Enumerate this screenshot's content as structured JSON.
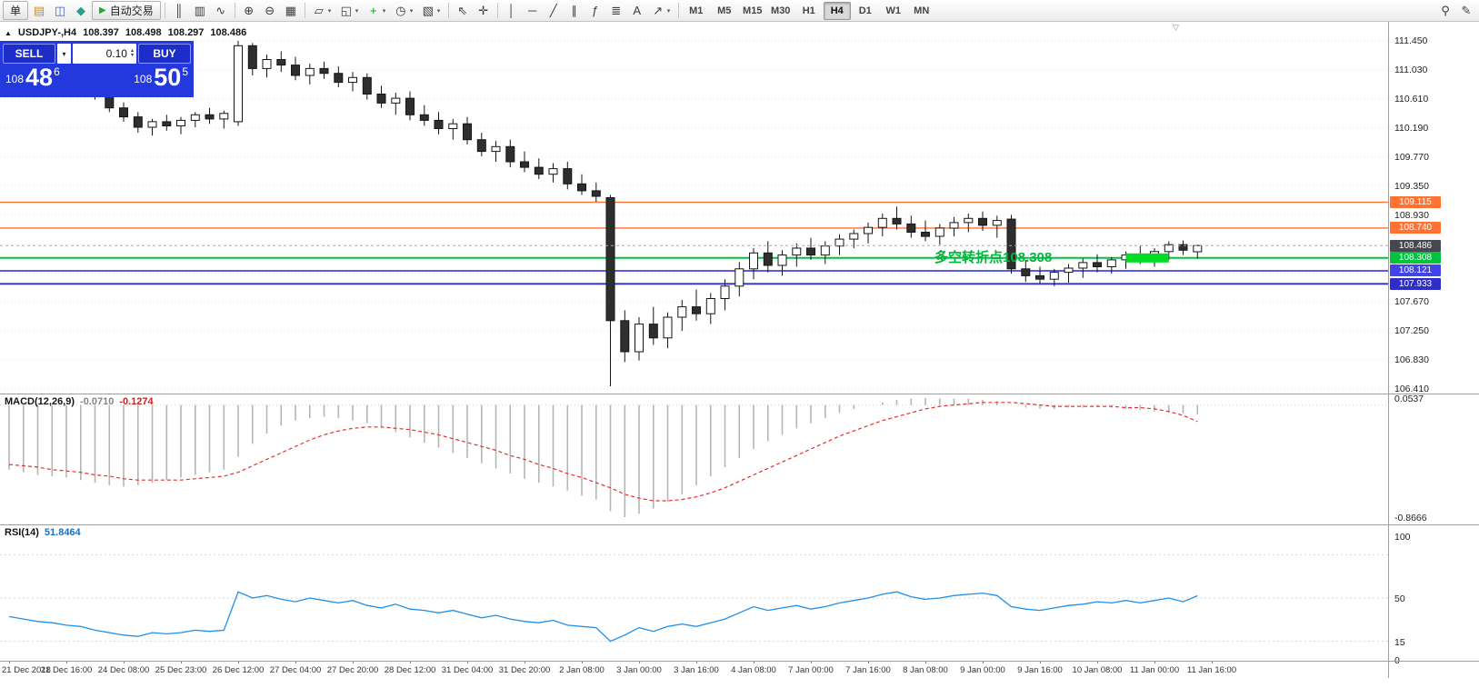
{
  "toolbar": {
    "items": [
      {
        "name": "new-order-button",
        "kind": "button",
        "label": "单"
      },
      {
        "name": "chart-window-icon",
        "kind": "icon",
        "glyph": "▤",
        "color": "#c79200"
      },
      {
        "name": "profiles-icon",
        "kind": "icon",
        "glyph": "◫",
        "color": "#3f66cc"
      },
      {
        "name": "navigator-icon",
        "kind": "icon",
        "glyph": "◆",
        "color": "#2a9d8f"
      },
      {
        "name": "auto-trading-button",
        "kind": "button",
        "label": "自动交易",
        "glyph": "▶",
        "glyph_color": "#1fae1f"
      },
      {
        "kind": "sep"
      },
      {
        "name": "bar-chart-icon",
        "kind": "icon",
        "glyph": "║"
      },
      {
        "name": "candlestick-chart-icon",
        "kind": "icon",
        "glyph": "▥"
      },
      {
        "name": "line-chart-icon",
        "kind": "icon",
        "glyph": "∿"
      },
      {
        "kind": "sep"
      },
      {
        "name": "zoom-in-icon",
        "kind": "icon",
        "glyph": "⊕"
      },
      {
        "name": "zoom-out-icon",
        "kind": "icon",
        "glyph": "⊖"
      },
      {
        "name": "tile-windows-icon",
        "kind": "icon",
        "glyph": "▦"
      },
      {
        "kind": "sep"
      },
      {
        "name": "new-chart-icon",
        "kind": "icon",
        "glyph": "▱",
        "caret": true
      },
      {
        "name": "profiles-menu-icon",
        "kind": "icon",
        "glyph": "◱",
        "caret": true
      },
      {
        "name": "indicators-icon",
        "kind": "icon",
        "glyph": "+",
        "color": "#0f9d0f",
        "caret": true
      },
      {
        "name": "periods-icon",
        "kind": "icon",
        "glyph": "◷",
        "caret": true
      },
      {
        "name": "templates-icon",
        "kind": "icon",
        "glyph": "▧",
        "caret": true
      },
      {
        "kind": "sep"
      },
      {
        "name": "cursor-icon",
        "kind": "icon",
        "glyph": "⇖"
      },
      {
        "name": "crosshair-icon",
        "kind": "icon",
        "glyph": "✛"
      },
      {
        "kind": "sep"
      },
      {
        "name": "vertical-line-icon",
        "kind": "icon",
        "glyph": "│"
      },
      {
        "name": "horizontal-line-icon",
        "kind": "icon",
        "glyph": "─"
      },
      {
        "name": "trendline-icon",
        "kind": "icon",
        "glyph": "╱"
      },
      {
        "name": "channel-icon",
        "kind": "icon",
        "glyph": "∥"
      },
      {
        "name": "fibonacci-icon",
        "kind": "icon",
        "glyph": "ƒ"
      },
      {
        "name": "shapes-icon",
        "kind": "icon",
        "glyph": "≣"
      },
      {
        "name": "text-icon",
        "kind": "icon",
        "glyph": "A"
      },
      {
        "name": "arrows-icon",
        "kind": "icon",
        "glyph": "↗",
        "caret": true
      },
      {
        "kind": "sep"
      }
    ],
    "timeframes": [
      "M1",
      "M5",
      "M15",
      "M30",
      "H1",
      "H4",
      "D1",
      "W1",
      "MN"
    ],
    "active_timeframe": "H4",
    "right_items": [
      {
        "name": "search-icon",
        "kind": "icon",
        "glyph": "⚲"
      },
      {
        "name": "edit-icon",
        "kind": "icon",
        "glyph": "✎"
      }
    ]
  },
  "chart_header": {
    "symbol": "USDJPY-,H4",
    "open": "108.397",
    "high": "108.498",
    "low": "108.297",
    "close": "108.486"
  },
  "trade_panel": {
    "sell_label": "SELL",
    "buy_label": "BUY",
    "volume": "0.10",
    "sell_price": {
      "base": "108",
      "big": "48",
      "sup": "6"
    },
    "buy_price": {
      "base": "108",
      "big": "50",
      "sup": "5"
    }
  },
  "annotation": {
    "text": "多空转折点108.308",
    "color": "#00b43c"
  },
  "chart_data": [
    {
      "type": "candlestick",
      "symbol": "USDJPY-",
      "timeframe": "H4",
      "ylim": [
        106.41,
        111.45
      ],
      "y_ticks": [
        "111.450",
        "111.030",
        "110.610",
        "110.190",
        "109.770",
        "109.350",
        "108.930",
        "108.510",
        "108.090",
        "107.670",
        "107.250",
        "106.830",
        "106.410"
      ],
      "hlines": [
        {
          "price": 109.115,
          "label": "109.115",
          "color": "#ff7232",
          "width": 1.4
        },
        {
          "price": 108.74,
          "label": "108.740",
          "color": "#ff7232",
          "width": 1.4
        },
        {
          "price": 108.486,
          "label": "108.486",
          "color": "#474750",
          "style": "current"
        },
        {
          "price": 108.308,
          "label": "108.308",
          "color": "#00c33e",
          "width": 2
        },
        {
          "price": 108.121,
          "label": "108.121",
          "color": "#4343ea",
          "width": 1.8
        },
        {
          "price": 107.933,
          "label": "107.933",
          "color": "#2d2dc8",
          "width": 1.8
        }
      ],
      "highlight": {
        "start_index": 78,
        "end_index": 81,
        "price": 108.308,
        "color": "#00dc28"
      },
      "ohlc": [
        [
          111.28,
          111.4,
          111.15,
          111.35
        ],
        [
          111.35,
          111.45,
          111.2,
          111.3
        ],
        [
          111.3,
          111.38,
          111.1,
          111.18
        ],
        [
          111.18,
          111.28,
          111.02,
          111.08
        ],
        [
          111.08,
          111.18,
          110.95,
          111.0
        ],
        [
          111.0,
          111.1,
          110.85,
          110.92
        ],
        [
          110.92,
          110.95,
          110.6,
          110.65
        ],
        [
          110.65,
          110.72,
          110.42,
          110.48
        ],
        [
          110.48,
          110.56,
          110.28,
          110.35
        ],
        [
          110.35,
          110.42,
          110.12,
          110.2
        ],
        [
          110.2,
          110.32,
          110.08,
          110.28
        ],
        [
          110.28,
          110.38,
          110.15,
          110.22
        ],
        [
          110.22,
          110.35,
          110.1,
          110.3
        ],
        [
          110.3,
          110.42,
          110.2,
          110.38
        ],
        [
          110.38,
          110.48,
          110.25,
          110.32
        ],
        [
          110.32,
          110.44,
          110.18,
          110.4
        ],
        [
          110.28,
          111.45,
          110.22,
          111.38
        ],
        [
          111.38,
          111.42,
          110.95,
          111.05
        ],
        [
          111.05,
          111.25,
          110.92,
          111.18
        ],
        [
          111.18,
          111.3,
          111.0,
          111.1
        ],
        [
          111.1,
          111.22,
          110.88,
          110.95
        ],
        [
          110.95,
          111.12,
          110.82,
          111.05
        ],
        [
          111.05,
          111.15,
          110.9,
          110.98
        ],
        [
          110.98,
          111.08,
          110.78,
          110.85
        ],
        [
          110.85,
          111.0,
          110.72,
          110.92
        ],
        [
          110.92,
          110.98,
          110.6,
          110.68
        ],
        [
          110.68,
          110.8,
          110.48,
          110.55
        ],
        [
          110.55,
          110.7,
          110.38,
          110.62
        ],
        [
          110.62,
          110.72,
          110.3,
          110.38
        ],
        [
          110.38,
          110.52,
          110.22,
          110.3
        ],
        [
          110.3,
          110.42,
          110.1,
          110.18
        ],
        [
          110.18,
          110.32,
          110.02,
          110.25
        ],
        [
          110.25,
          110.35,
          109.95,
          110.02
        ],
        [
          110.02,
          110.12,
          109.78,
          109.85
        ],
        [
          109.85,
          110.0,
          109.7,
          109.92
        ],
        [
          109.92,
          110.02,
          109.62,
          109.7
        ],
        [
          109.7,
          109.85,
          109.55,
          109.62
        ],
        [
          109.62,
          109.75,
          109.45,
          109.52
        ],
        [
          109.52,
          109.68,
          109.4,
          109.6
        ],
        [
          109.6,
          109.7,
          109.3,
          109.38
        ],
        [
          109.38,
          109.52,
          109.22,
          109.28
        ],
        [
          109.28,
          109.4,
          109.12,
          109.2
        ],
        [
          109.18,
          109.22,
          106.45,
          107.4
        ],
        [
          107.4,
          107.55,
          106.8,
          106.95
        ],
        [
          106.95,
          107.45,
          106.82,
          107.35
        ],
        [
          107.35,
          107.6,
          107.05,
          107.15
        ],
        [
          107.15,
          107.52,
          107.0,
          107.45
        ],
        [
          107.45,
          107.7,
          107.25,
          107.6
        ],
        [
          107.6,
          107.85,
          107.4,
          107.5
        ],
        [
          107.5,
          107.8,
          107.35,
          107.72
        ],
        [
          107.72,
          108.0,
          107.55,
          107.9
        ],
        [
          107.9,
          108.25,
          107.75,
          108.15
        ],
        [
          108.15,
          108.45,
          108.0,
          108.38
        ],
        [
          108.38,
          108.55,
          108.1,
          108.2
        ],
        [
          108.2,
          108.42,
          108.05,
          108.35
        ],
        [
          108.35,
          108.52,
          108.18,
          108.45
        ],
        [
          108.45,
          108.6,
          108.28,
          108.35
        ],
        [
          108.35,
          108.55,
          108.22,
          108.48
        ],
        [
          108.48,
          108.65,
          108.35,
          108.58
        ],
        [
          108.58,
          108.72,
          108.45,
          108.66
        ],
        [
          108.66,
          108.82,
          108.52,
          108.75
        ],
        [
          108.75,
          108.95,
          108.62,
          108.88
        ],
        [
          108.88,
          109.05,
          108.72,
          108.8
        ],
        [
          108.8,
          108.92,
          108.6,
          108.68
        ],
        [
          108.68,
          108.85,
          108.55,
          108.62
        ],
        [
          108.62,
          108.8,
          108.5,
          108.74
        ],
        [
          108.74,
          108.9,
          108.62,
          108.82
        ],
        [
          108.82,
          108.95,
          108.68,
          108.88
        ],
        [
          108.88,
          108.98,
          108.7,
          108.78
        ],
        [
          108.78,
          108.92,
          108.6,
          108.85
        ],
        [
          108.87,
          108.93,
          108.08,
          108.15
        ],
        [
          108.15,
          108.28,
          107.96,
          108.05
        ],
        [
          108.05,
          108.18,
          107.93,
          108.0
        ],
        [
          108.0,
          108.15,
          107.9,
          108.1
        ],
        [
          108.1,
          108.22,
          107.95,
          108.16
        ],
        [
          108.16,
          108.3,
          108.02,
          108.24
        ],
        [
          108.24,
          108.36,
          108.1,
          108.18
        ],
        [
          108.18,
          108.32,
          108.08,
          108.28
        ],
        [
          108.28,
          108.4,
          108.15,
          108.35
        ],
        [
          108.35,
          108.48,
          108.22,
          108.3
        ],
        [
          108.3,
          108.45,
          108.18,
          108.4
        ],
        [
          108.4,
          108.55,
          108.28,
          108.5
        ],
        [
          108.5,
          108.56,
          108.35,
          108.42
        ],
        [
          108.397,
          108.498,
          108.297,
          108.486
        ]
      ],
      "x_labels": [
        "21 Dec 2018",
        "21 Dec 16:00",
        "24 Dec 08:00",
        "25 Dec 23:00",
        "26 Dec 12:00",
        "27 Dec 04:00",
        "27 Dec 20:00",
        "28 Dec 12:00",
        "31 Dec 04:00",
        "31 Dec 20:00",
        "2 Jan 08:00",
        "3 Jan 00:00",
        "3 Jan 16:00",
        "4 Jan 08:00",
        "7 Jan 00:00",
        "7 Jan 16:00",
        "8 Jan 08:00",
        "9 Jan 00:00",
        "9 Jan 16:00",
        "10 Jan 08:00",
        "11 Jan 00:00",
        "11 Jan 16:00"
      ]
    },
    {
      "type": "macd",
      "title": "MACD(12,26,9)",
      "main_value": "-0.0710",
      "signal_value": "-0.1274",
      "ylim": [
        -0.8666,
        0.0537
      ],
      "scale_labels": [
        {
          "text": "0.0537",
          "value": 0.0537
        },
        {
          "text": "-0.8666",
          "value": -0.8666
        }
      ],
      "values": [
        -0.5,
        -0.52,
        -0.54,
        -0.55,
        -0.56,
        -0.58,
        -0.6,
        -0.62,
        -0.63,
        -0.62,
        -0.6,
        -0.58,
        -0.56,
        -0.54,
        -0.52,
        -0.5,
        -0.4,
        -0.3,
        -0.22,
        -0.16,
        -0.12,
        -0.1,
        -0.09,
        -0.1,
        -0.12,
        -0.14,
        -0.17,
        -0.21,
        -0.25,
        -0.29,
        -0.33,
        -0.37,
        -0.41,
        -0.45,
        -0.49,
        -0.53,
        -0.57,
        -0.6,
        -0.63,
        -0.66,
        -0.7,
        -0.73,
        -0.82,
        -0.8666,
        -0.84,
        -0.8,
        -0.75,
        -0.69,
        -0.62,
        -0.55,
        -0.48,
        -0.41,
        -0.34,
        -0.28,
        -0.23,
        -0.18,
        -0.14,
        -0.1,
        -0.06,
        -0.03,
        0.0,
        0.02,
        0.04,
        0.05,
        0.0537,
        0.05,
        0.05,
        0.05,
        0.04,
        0.03,
        0.0,
        -0.02,
        -0.03,
        -0.03,
        -0.02,
        -0.02,
        -0.01,
        -0.02,
        -0.03,
        -0.04,
        -0.05,
        -0.06,
        -0.065,
        -0.071
      ],
      "signal": [
        -0.46,
        -0.47,
        -0.48,
        -0.5,
        -0.51,
        -0.52,
        -0.54,
        -0.55,
        -0.57,
        -0.58,
        -0.58,
        -0.58,
        -0.58,
        -0.57,
        -0.56,
        -0.55,
        -0.52,
        -0.47,
        -0.42,
        -0.37,
        -0.32,
        -0.27,
        -0.23,
        -0.2,
        -0.18,
        -0.17,
        -0.17,
        -0.18,
        -0.19,
        -0.21,
        -0.23,
        -0.26,
        -0.29,
        -0.32,
        -0.35,
        -0.39,
        -0.42,
        -0.46,
        -0.49,
        -0.53,
        -0.56,
        -0.6,
        -0.64,
        -0.69,
        -0.72,
        -0.74,
        -0.74,
        -0.73,
        -0.71,
        -0.68,
        -0.64,
        -0.59,
        -0.54,
        -0.49,
        -0.44,
        -0.39,
        -0.34,
        -0.29,
        -0.24,
        -0.2,
        -0.16,
        -0.12,
        -0.09,
        -0.06,
        -0.03,
        -0.01,
        0.0,
        0.01,
        0.02,
        0.02,
        0.02,
        0.01,
        0.0,
        -0.01,
        -0.01,
        -0.01,
        -0.01,
        -0.01,
        -0.02,
        -0.02,
        -0.03,
        -0.05,
        -0.08,
        -0.1274
      ]
    },
    {
      "type": "rsi",
      "title": "RSI(14)",
      "value_label": "51.8464",
      "ylim": [
        0,
        100
      ],
      "levels": [
        85,
        50,
        15
      ],
      "scale_labels": [
        {
          "text": "100",
          "value": 100
        },
        {
          "text": "50",
          "value": 50
        },
        {
          "text": "15",
          "value": 15
        },
        {
          "text": "0",
          "value": 0
        }
      ],
      "values": [
        35,
        33,
        31,
        30,
        28,
        27,
        24,
        22,
        20,
        19,
        22,
        21,
        22,
        24,
        23,
        24,
        55,
        50,
        52,
        49,
        47,
        50,
        48,
        46,
        48,
        44,
        42,
        45,
        41,
        40,
        38,
        40,
        37,
        34,
        36,
        33,
        31,
        30,
        32,
        28,
        27,
        26,
        15,
        20,
        26,
        23,
        27,
        29,
        27,
        30,
        33,
        38,
        43,
        40,
        42,
        44,
        41,
        43,
        46,
        48,
        50,
        53,
        55,
        51,
        49,
        50,
        52,
        53,
        54,
        52,
        43,
        41,
        40,
        42,
        44,
        45,
        47,
        46,
        48,
        46,
        48,
        50,
        47,
        51.85
      ]
    }
  ]
}
